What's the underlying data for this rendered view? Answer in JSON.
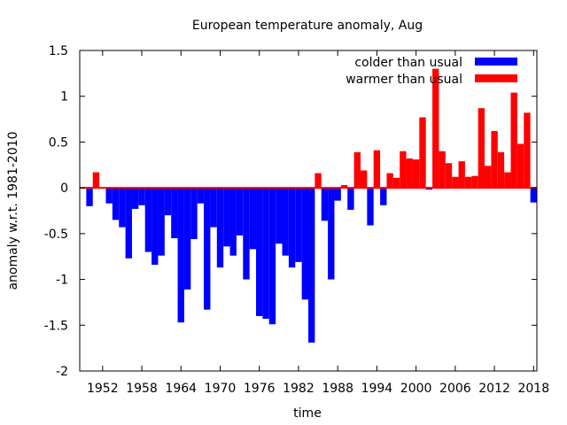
{
  "chart_data": {
    "type": "bar",
    "title": "European temperature anomaly, Aug",
    "xlabel": "time",
    "ylabel": "anomaly w.r.t. 1981-2010",
    "xlim": [
      1948.5,
      2018.5
    ],
    "ylim": [
      -2,
      1.5
    ],
    "yticks": [
      1.5,
      1,
      0.5,
      0,
      -0.5,
      -1,
      -1.5,
      -2
    ],
    "ytick_labels": [
      "1.5",
      "1",
      "0.5",
      "0",
      "-0.5",
      "-1",
      "-1.5",
      "-2"
    ],
    "xticks": [
      1952,
      1958,
      1964,
      1970,
      1976,
      1982,
      1988,
      1994,
      2000,
      2006,
      2012,
      2018
    ],
    "grid": false,
    "legend_position": "top-right",
    "legend": [
      {
        "label": "colder than usual",
        "color": "#0000ff"
      },
      {
        "label": "warmer than usual",
        "color": "#ff0000"
      }
    ],
    "colors": {
      "cold": "#0000ff",
      "warm": "#ff0000"
    },
    "x": [
      1950,
      1951,
      1952,
      1953,
      1954,
      1955,
      1956,
      1957,
      1958,
      1959,
      1960,
      1961,
      1962,
      1963,
      1964,
      1965,
      1966,
      1967,
      1968,
      1969,
      1970,
      1971,
      1972,
      1973,
      1974,
      1975,
      1976,
      1977,
      1978,
      1979,
      1980,
      1981,
      1982,
      1983,
      1984,
      1985,
      1986,
      1987,
      1988,
      1989,
      1990,
      1991,
      1992,
      1993,
      1994,
      1995,
      1996,
      1997,
      1998,
      1999,
      2000,
      2001,
      2002,
      2003,
      2004,
      2005,
      2006,
      2007,
      2008,
      2009,
      2010,
      2011,
      2012,
      2013,
      2014,
      2015,
      2016,
      2017,
      2018
    ],
    "values": [
      -0.2,
      0.17,
      0,
      -0.17,
      -0.35,
      -0.43,
      -0.77,
      -0.23,
      -0.19,
      -0.7,
      -0.84,
      -0.74,
      -0.3,
      -0.55,
      -1.47,
      -1.11,
      -0.56,
      -0.17,
      -1.33,
      -0.43,
      -0.87,
      -0.64,
      -0.74,
      -0.52,
      -1.0,
      -0.67,
      -1.4,
      -1.43,
      -1.49,
      -0.61,
      -0.74,
      -0.87,
      -0.81,
      -1.22,
      -1.69,
      0.16,
      -0.36,
      -1.0,
      -0.14,
      0.03,
      -0.24,
      0.39,
      0.19,
      -0.41,
      0.41,
      -0.19,
      0.16,
      0.11,
      0.4,
      0.32,
      0.31,
      0.77,
      -0.02,
      1.3,
      0.4,
      0.27,
      0.12,
      0.29,
      0.12,
      0.13,
      0.87,
      0.24,
      0.62,
      0.39,
      0.17,
      1.04,
      0.48,
      0.82,
      -0.16
    ]
  }
}
